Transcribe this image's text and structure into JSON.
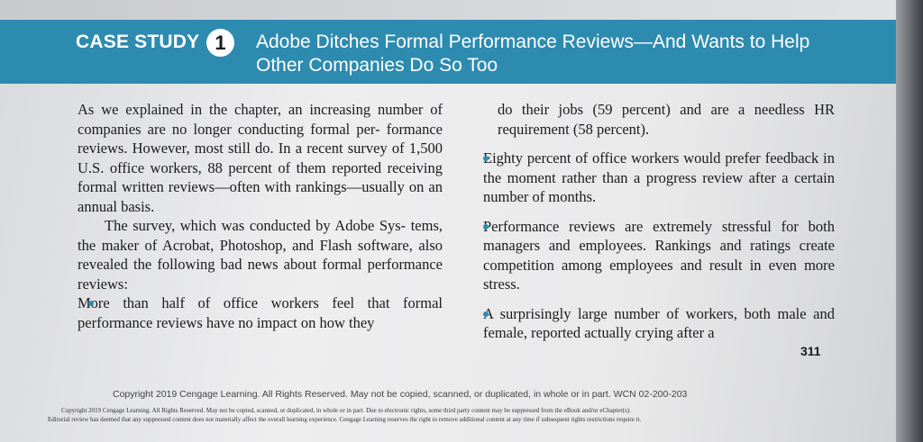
{
  "banner": {
    "label": "CASE STUDY",
    "number": "1",
    "title_line1": "Adobe Ditches Formal Performance Reviews—And Wants to Help",
    "title_line2": "Other Companies Do So Too"
  },
  "left_column": {
    "para1": "As we explained in the chapter, an increasing number of companies are no longer conducting formal per- formance reviews. However, most still do. In a recent survey of 1,500 U.S. office workers, 88 percent of them reported receiving formal written reviews—often with rankings—usually on an annual basis.",
    "para2": "The survey, which was conducted by Adobe Sys- tems, the maker of Acrobat, Photoshop, and Flash software, also revealed the following bad news about formal performance reviews:",
    "bullet1": "More than half of office workers feel that formal performance reviews have no impact on how they"
  },
  "right_column": {
    "continuation": "do their jobs (59 percent) and are a needless HR requirement (58 percent).",
    "bullets": [
      "Eighty percent of office workers would prefer feedback in the moment rather than a progress review after a certain number of months.",
      "Performance reviews are extremely stressful for both managers and employees. Rankings and ratings create competition among employees and result in even more stress.",
      "A surprisingly large number of workers, both male and female, reported actually crying after a"
    ]
  },
  "page_number": "311",
  "footer": {
    "main": "Copyright 2019 Cengage Learning. All Rights Reserved. May not be copied, scanned, or duplicated, in whole or in part.  WCN 02-200-203",
    "small1": "Copyright 2019 Cengage Learning. All Rights Reserved. May not be copied, scanned, or duplicated, in whole or in part. Due to electronic rights, some third party content may be suppressed from the eBook and/or eChapter(s).",
    "small2": "Editorial review has deemed that any suppressed content does not materially affect the overall learning experience. Cengage Learning reserves the right to remove additional content at any time if subsequent rights restrictions require it."
  },
  "colors": {
    "banner": "#2d8bb0",
    "bullet": "#2d8bb0",
    "text": "#1b1b1b"
  }
}
